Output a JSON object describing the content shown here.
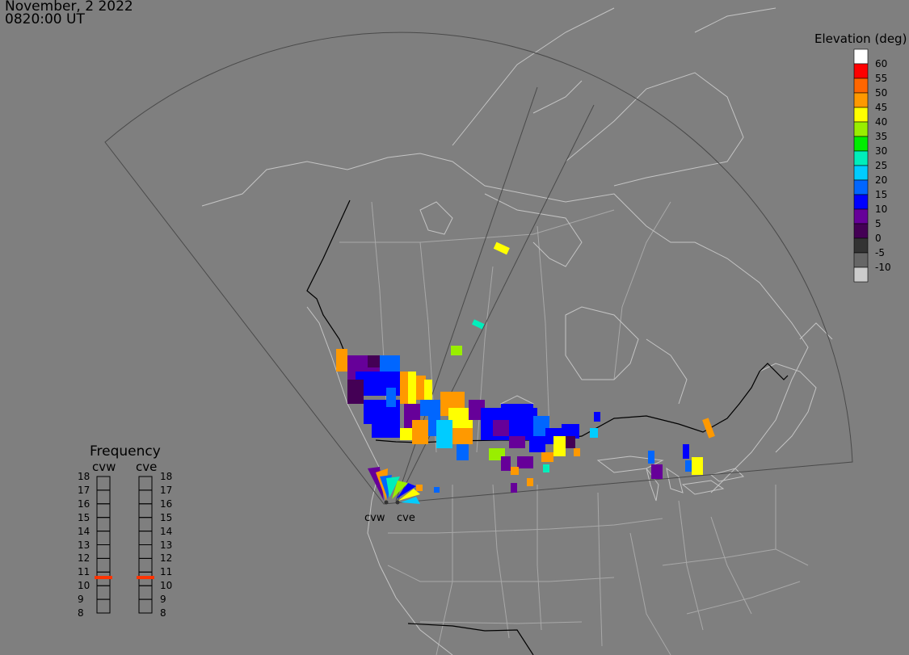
{
  "header": {
    "date": "November, 2 2022",
    "time": "0820:00 UT"
  },
  "elevation_legend": {
    "title": "Elevation (deg)",
    "entries": [
      {
        "label": "60",
        "color": "#ffffff"
      },
      {
        "label": "55",
        "color": "#ff0000"
      },
      {
        "label": "50",
        "color": "#ff6600"
      },
      {
        "label": "45",
        "color": "#ff9900"
      },
      {
        "label": "40",
        "color": "#ffff00"
      },
      {
        "label": "35",
        "color": "#99ee00"
      },
      {
        "label": "30",
        "color": "#00ee00"
      },
      {
        "label": "25",
        "color": "#00eebb"
      },
      {
        "label": "20",
        "color": "#00ccff"
      },
      {
        "label": "15",
        "color": "#0066ff"
      },
      {
        "label": "10",
        "color": "#0000ff"
      },
      {
        "label": "5",
        "color": "#660099"
      },
      {
        "label": "0",
        "color": "#440055"
      },
      {
        "label": "-5",
        "color": "#333333"
      },
      {
        "label": "-10",
        "color": "#666666"
      },
      {
        "label": "",
        "color": "#cccccc"
      }
    ]
  },
  "frequency_panel": {
    "title": "Frequency",
    "radars": [
      {
        "name": "cvw",
        "frequency_mhz": 10.6
      },
      {
        "name": "cve",
        "frequency_mhz": 10.6
      }
    ],
    "scale": [
      "18",
      "17",
      "16",
      "15",
      "14",
      "13",
      "12",
      "11",
      "10",
      "9",
      "8"
    ],
    "indicator_color": "#ff3300"
  },
  "sites": [
    {
      "name": "cvw"
    },
    {
      "name": "cve"
    }
  ]
}
